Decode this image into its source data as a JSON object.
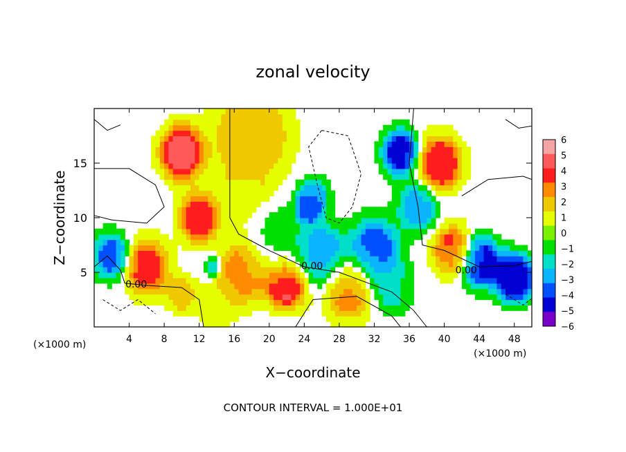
{
  "chart_data": {
    "type": "heatmap",
    "title": "zonal velocity",
    "xlabel": "X−coordinate",
    "ylabel": "Z−coordinate",
    "x_unit_left": "(×1000 m)",
    "x_unit_right": "(×1000 m)",
    "xlim": [
      0,
      50
    ],
    "ylim": [
      0,
      20
    ],
    "xticks": [
      4,
      8,
      12,
      16,
      20,
      24,
      28,
      32,
      36,
      40,
      44,
      48
    ],
    "xtick_labels": [
      "4",
      "8",
      "12",
      "16",
      "20",
      "24",
      "28",
      "32",
      "36",
      "40",
      "44",
      "48"
    ],
    "yticks": [
      5,
      10,
      15
    ],
    "ytick_labels": [
      "5",
      "10",
      "15"
    ],
    "colorbar": {
      "min": -6,
      "max": 6,
      "ticks": [
        6,
        5,
        4,
        3,
        2,
        1,
        0,
        -1,
        -2,
        -3,
        -4,
        -5,
        -6
      ],
      "tick_labels": [
        "6",
        "5",
        "4",
        "3",
        "2",
        "1",
        "0",
        "−1",
        "−2",
        "−3",
        "−4",
        "−5",
        "−6"
      ],
      "colors": [
        "#f3a5a5",
        "#ff5a5a",
        "#ff1e1e",
        "#ff8c00",
        "#f0c800",
        "#e6ff00",
        "#78f000",
        "#00e000",
        "#00e0c8",
        "#0ab4ff",
        "#0050ff",
        "#0000d2",
        "#7800c8"
      ]
    },
    "contour_labels": [
      {
        "text": "0.00",
        "x": 4.8,
        "y": 3.6
      },
      {
        "text": "0.00",
        "x": 24.9,
        "y": 5.3
      },
      {
        "text": "0.00",
        "x": 42.5,
        "y": 4.9
      }
    ],
    "blobs": [
      {
        "x": 18,
        "y": 17.5,
        "v": 2.5,
        "s": 3.8
      },
      {
        "x": 10,
        "y": 16,
        "v": 5,
        "s": 2.2
      },
      {
        "x": 12,
        "y": 10,
        "v": 4,
        "s": 2
      },
      {
        "x": 17,
        "y": 12,
        "v": 1,
        "s": 2.5
      },
      {
        "x": 21,
        "y": 8,
        "v": -1,
        "s": 3
      },
      {
        "x": 25,
        "y": 12,
        "v": -3,
        "s": 1.5
      },
      {
        "x": 26,
        "y": 6.5,
        "v": -3.5,
        "s": 2.5
      },
      {
        "x": 32,
        "y": 7,
        "v": -4,
        "s": 2.5
      },
      {
        "x": 35,
        "y": 16,
        "v": -5,
        "s": 1.8
      },
      {
        "x": 37,
        "y": 11,
        "v": -3,
        "s": 2
      },
      {
        "x": 39.5,
        "y": 15,
        "v": 4.5,
        "s": 2.2
      },
      {
        "x": 41,
        "y": 7,
        "v": 4,
        "s": 2
      },
      {
        "x": 44,
        "y": 6,
        "v": -5,
        "s": 2
      },
      {
        "x": 48,
        "y": 4.5,
        "v": -5.5,
        "s": 2
      },
      {
        "x": 38,
        "y": 4,
        "v": 0,
        "s": 2.5
      },
      {
        "x": 34,
        "y": 3.5,
        "v": -2,
        "s": 2
      },
      {
        "x": 29,
        "y": 3.5,
        "v": 3,
        "s": 2.5
      },
      {
        "x": 22,
        "y": 4,
        "v": 5,
        "s": 2
      },
      {
        "x": 17,
        "y": 5,
        "v": 3,
        "s": 2.5
      },
      {
        "x": 6,
        "y": 5.5,
        "v": 4,
        "s": 2.2
      },
      {
        "x": 2,
        "y": 6.5,
        "v": -4,
        "s": 1.8
      },
      {
        "x": 13.5,
        "y": 5.5,
        "v": -3,
        "s": 0.8
      },
      {
        "x": 24.5,
        "y": 11,
        "v": -5.5,
        "s": 1.1
      },
      {
        "x": 10,
        "y": 3,
        "v": 2,
        "s": 1.5
      },
      {
        "x": 14,
        "y": 2,
        "v": 1,
        "s": 2
      }
    ]
  }
}
